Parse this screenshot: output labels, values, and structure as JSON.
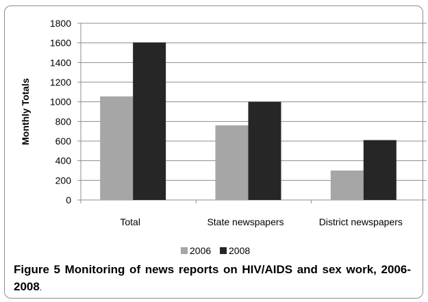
{
  "chart_data": {
    "type": "bar",
    "categories": [
      "Total",
      "State newspapers",
      "District newspapers"
    ],
    "series": [
      {
        "name": "2006",
        "values": [
          1055,
          760,
          300
        ],
        "color": "#a6a6a6"
      },
      {
        "name": "2008",
        "values": [
          1605,
          1000,
          610
        ],
        "color": "#262626"
      }
    ],
    "title": "",
    "xlabel": "",
    "ylabel": "Monthly Totals",
    "ylim": [
      0,
      1800
    ],
    "yticks": [
      0,
      200,
      400,
      600,
      800,
      1000,
      1200,
      1400,
      1600,
      1800
    ],
    "grid": true,
    "legend_position": "bottom"
  },
  "caption": {
    "label": "Figure 5",
    "text": "Monitoring of news reports on HIV/AIDS and sex work, 2006-2008",
    "tail": "."
  }
}
